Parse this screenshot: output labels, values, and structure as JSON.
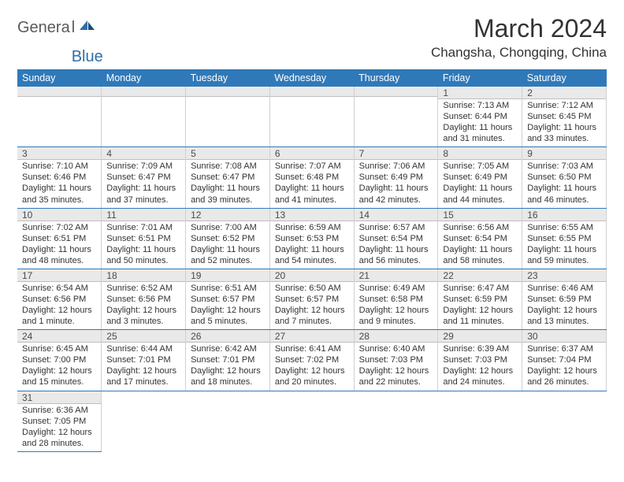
{
  "brand": {
    "general": "Genera",
    "l": "l",
    "blue": "Blue"
  },
  "title": "March 2024",
  "location": "Changsha, Chongqing, China",
  "header_bg": "#3079b9",
  "weekdays": [
    "Sunday",
    "Monday",
    "Tuesday",
    "Wednesday",
    "Thursday",
    "Friday",
    "Saturday"
  ],
  "weeks": [
    [
      null,
      null,
      null,
      null,
      null,
      {
        "n": "1",
        "sr": "Sunrise: 7:13 AM",
        "ss": "Sunset: 6:44 PM",
        "dl": "Daylight: 11 hours and 31 minutes."
      },
      {
        "n": "2",
        "sr": "Sunrise: 7:12 AM",
        "ss": "Sunset: 6:45 PM",
        "dl": "Daylight: 11 hours and 33 minutes."
      }
    ],
    [
      {
        "n": "3",
        "sr": "Sunrise: 7:10 AM",
        "ss": "Sunset: 6:46 PM",
        "dl": "Daylight: 11 hours and 35 minutes."
      },
      {
        "n": "4",
        "sr": "Sunrise: 7:09 AM",
        "ss": "Sunset: 6:47 PM",
        "dl": "Daylight: 11 hours and 37 minutes."
      },
      {
        "n": "5",
        "sr": "Sunrise: 7:08 AM",
        "ss": "Sunset: 6:47 PM",
        "dl": "Daylight: 11 hours and 39 minutes."
      },
      {
        "n": "6",
        "sr": "Sunrise: 7:07 AM",
        "ss": "Sunset: 6:48 PM",
        "dl": "Daylight: 11 hours and 41 minutes."
      },
      {
        "n": "7",
        "sr": "Sunrise: 7:06 AM",
        "ss": "Sunset: 6:49 PM",
        "dl": "Daylight: 11 hours and 42 minutes."
      },
      {
        "n": "8",
        "sr": "Sunrise: 7:05 AM",
        "ss": "Sunset: 6:49 PM",
        "dl": "Daylight: 11 hours and 44 minutes."
      },
      {
        "n": "9",
        "sr": "Sunrise: 7:03 AM",
        "ss": "Sunset: 6:50 PM",
        "dl": "Daylight: 11 hours and 46 minutes."
      }
    ],
    [
      {
        "n": "10",
        "sr": "Sunrise: 7:02 AM",
        "ss": "Sunset: 6:51 PM",
        "dl": "Daylight: 11 hours and 48 minutes."
      },
      {
        "n": "11",
        "sr": "Sunrise: 7:01 AM",
        "ss": "Sunset: 6:51 PM",
        "dl": "Daylight: 11 hours and 50 minutes."
      },
      {
        "n": "12",
        "sr": "Sunrise: 7:00 AM",
        "ss": "Sunset: 6:52 PM",
        "dl": "Daylight: 11 hours and 52 minutes."
      },
      {
        "n": "13",
        "sr": "Sunrise: 6:59 AM",
        "ss": "Sunset: 6:53 PM",
        "dl": "Daylight: 11 hours and 54 minutes."
      },
      {
        "n": "14",
        "sr": "Sunrise: 6:57 AM",
        "ss": "Sunset: 6:54 PM",
        "dl": "Daylight: 11 hours and 56 minutes."
      },
      {
        "n": "15",
        "sr": "Sunrise: 6:56 AM",
        "ss": "Sunset: 6:54 PM",
        "dl": "Daylight: 11 hours and 58 minutes."
      },
      {
        "n": "16",
        "sr": "Sunrise: 6:55 AM",
        "ss": "Sunset: 6:55 PM",
        "dl": "Daylight: 11 hours and 59 minutes."
      }
    ],
    [
      {
        "n": "17",
        "sr": "Sunrise: 6:54 AM",
        "ss": "Sunset: 6:56 PM",
        "dl": "Daylight: 12 hours and 1 minute."
      },
      {
        "n": "18",
        "sr": "Sunrise: 6:52 AM",
        "ss": "Sunset: 6:56 PM",
        "dl": "Daylight: 12 hours and 3 minutes."
      },
      {
        "n": "19",
        "sr": "Sunrise: 6:51 AM",
        "ss": "Sunset: 6:57 PM",
        "dl": "Daylight: 12 hours and 5 minutes."
      },
      {
        "n": "20",
        "sr": "Sunrise: 6:50 AM",
        "ss": "Sunset: 6:57 PM",
        "dl": "Daylight: 12 hours and 7 minutes."
      },
      {
        "n": "21",
        "sr": "Sunrise: 6:49 AM",
        "ss": "Sunset: 6:58 PM",
        "dl": "Daylight: 12 hours and 9 minutes."
      },
      {
        "n": "22",
        "sr": "Sunrise: 6:47 AM",
        "ss": "Sunset: 6:59 PM",
        "dl": "Daylight: 12 hours and 11 minutes."
      },
      {
        "n": "23",
        "sr": "Sunrise: 6:46 AM",
        "ss": "Sunset: 6:59 PM",
        "dl": "Daylight: 12 hours and 13 minutes."
      }
    ],
    [
      {
        "n": "24",
        "sr": "Sunrise: 6:45 AM",
        "ss": "Sunset: 7:00 PM",
        "dl": "Daylight: 12 hours and 15 minutes."
      },
      {
        "n": "25",
        "sr": "Sunrise: 6:44 AM",
        "ss": "Sunset: 7:01 PM",
        "dl": "Daylight: 12 hours and 17 minutes."
      },
      {
        "n": "26",
        "sr": "Sunrise: 6:42 AM",
        "ss": "Sunset: 7:01 PM",
        "dl": "Daylight: 12 hours and 18 minutes."
      },
      {
        "n": "27",
        "sr": "Sunrise: 6:41 AM",
        "ss": "Sunset: 7:02 PM",
        "dl": "Daylight: 12 hours and 20 minutes."
      },
      {
        "n": "28",
        "sr": "Sunrise: 6:40 AM",
        "ss": "Sunset: 7:03 PM",
        "dl": "Daylight: 12 hours and 22 minutes."
      },
      {
        "n": "29",
        "sr": "Sunrise: 6:39 AM",
        "ss": "Sunset: 7:03 PM",
        "dl": "Daylight: 12 hours and 24 minutes."
      },
      {
        "n": "30",
        "sr": "Sunrise: 6:37 AM",
        "ss": "Sunset: 7:04 PM",
        "dl": "Daylight: 12 hours and 26 minutes."
      }
    ],
    [
      {
        "n": "31",
        "sr": "Sunrise: 6:36 AM",
        "ss": "Sunset: 7:05 PM",
        "dl": "Daylight: 12 hours and 28 minutes."
      },
      null,
      null,
      null,
      null,
      null,
      null
    ]
  ]
}
